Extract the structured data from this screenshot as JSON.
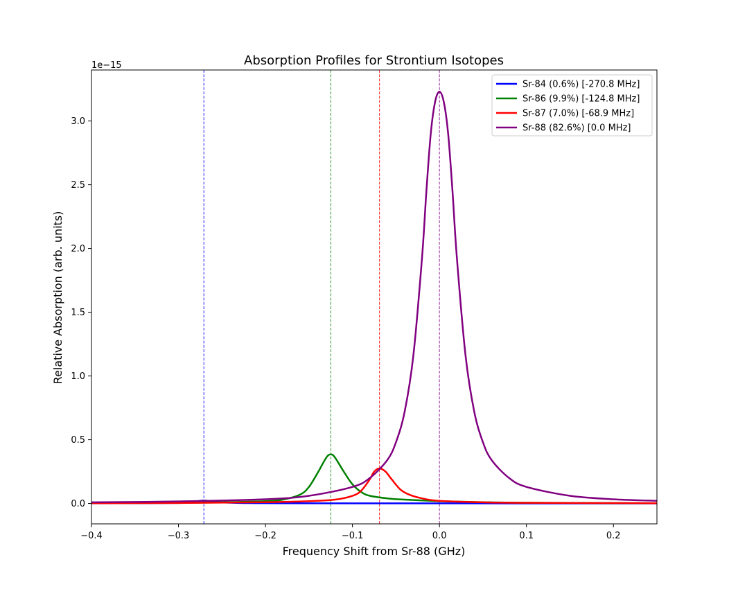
{
  "chart_data": {
    "type": "line",
    "title": "Absorption Profiles for Strontium Isotopes",
    "xlabel": "Frequency Shift from Sr-88 (GHz)",
    "ylabel": "Relative Absorption (arb. units)",
    "offset_text": "1e−15",
    "xlim": [
      -0.4,
      0.25
    ],
    "ylim": [
      -0.16,
      3.4
    ],
    "y_unit_multiplier": "1e-15",
    "grid": false,
    "legend_position": "upper right",
    "x_ticks": [
      -0.4,
      -0.3,
      -0.2,
      -0.1,
      0.0,
      0.1,
      0.2
    ],
    "x_tick_labels": [
      "−0.4",
      "−0.3",
      "−0.2",
      "−0.1",
      "0.0",
      "0.1",
      "0.2"
    ],
    "y_ticks": [
      0.0,
      0.5,
      1.0,
      1.5,
      2.0,
      2.5,
      3.0
    ],
    "y_tick_labels": [
      "0.0",
      "0.5",
      "1.0",
      "1.5",
      "2.0",
      "2.5",
      "3.0"
    ],
    "series": [
      {
        "name": "Sr-84 (0.6%) [-270.8 MHz]",
        "color": "#0000ff",
        "center": -0.2708,
        "peak": 0.023,
        "x": [
          -0.4,
          -0.35,
          -0.3,
          -0.29,
          -0.28,
          -0.275,
          -0.2708,
          -0.266,
          -0.26,
          -0.25,
          -0.22,
          -0.18,
          -0.1,
          0.0,
          0.1,
          0.25
        ],
        "y": [
          0.001,
          0.002,
          0.004,
          0.007,
          0.015,
          0.021,
          0.023,
          0.021,
          0.015,
          0.008,
          0.003,
          0.002,
          0.001,
          0.001,
          0.0005,
          0.0003
        ]
      },
      {
        "name": "Sr-86 (9.9%) [-124.8 MHz]",
        "color": "#008000",
        "center": -0.1248,
        "peak": 0.385,
        "x": [
          -0.4,
          -0.3,
          -0.25,
          -0.2,
          -0.18,
          -0.16,
          -0.15,
          -0.14,
          -0.13,
          -0.1248,
          -0.12,
          -0.11,
          -0.1,
          -0.09,
          -0.08,
          -0.06,
          -0.04,
          0.0,
          0.05,
          0.1,
          0.25
        ],
        "y": [
          0.002,
          0.005,
          0.009,
          0.018,
          0.03,
          0.07,
          0.13,
          0.24,
          0.36,
          0.385,
          0.36,
          0.25,
          0.15,
          0.09,
          0.06,
          0.04,
          0.03,
          0.018,
          0.01,
          0.006,
          0.002
        ]
      },
      {
        "name": "Sr-87 (7.0%) [-68.9 MHz]",
        "color": "#ff0000",
        "center": -0.0689,
        "peak": 0.275,
        "x": [
          -0.4,
          -0.3,
          -0.2,
          -0.15,
          -0.12,
          -0.1,
          -0.09,
          -0.08,
          -0.075,
          -0.0689,
          -0.062,
          -0.055,
          -0.045,
          -0.035,
          -0.02,
          0.0,
          0.05,
          0.1,
          0.25
        ],
        "y": [
          0.002,
          0.004,
          0.01,
          0.018,
          0.03,
          0.06,
          0.1,
          0.19,
          0.25,
          0.275,
          0.25,
          0.19,
          0.11,
          0.07,
          0.04,
          0.02,
          0.009,
          0.005,
          0.002
        ]
      },
      {
        "name": "Sr-88 (82.6%) [0.0 MHz]",
        "color": "#800080",
        "center": 0.0,
        "peak": 3.23,
        "x": [
          -0.4,
          -0.3,
          -0.2,
          -0.15,
          -0.1,
          -0.08,
          -0.06,
          -0.05,
          -0.04,
          -0.03,
          -0.02,
          -0.015,
          -0.01,
          -0.005,
          0.0,
          0.005,
          0.01,
          0.015,
          0.02,
          0.03,
          0.04,
          0.05,
          0.06,
          0.08,
          0.1,
          0.15,
          0.2,
          0.25
        ],
        "y": [
          0.009,
          0.016,
          0.033,
          0.06,
          0.13,
          0.2,
          0.34,
          0.48,
          0.72,
          1.16,
          1.93,
          2.45,
          2.9,
          3.15,
          3.23,
          3.15,
          2.9,
          2.45,
          1.93,
          1.16,
          0.72,
          0.48,
          0.34,
          0.2,
          0.13,
          0.06,
          0.033,
          0.021
        ]
      }
    ]
  }
}
